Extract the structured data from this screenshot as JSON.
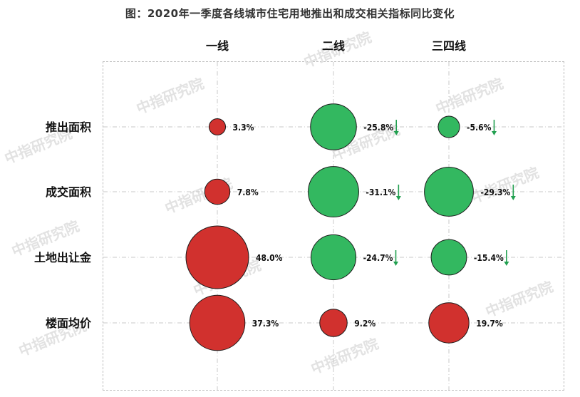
{
  "chart_data": {
    "type": "bubble-matrix",
    "title": "图：2020年一季度各线城市住宅用地推出和成交相关指标同比变化",
    "columns": [
      "一线",
      "二线",
      "三四线"
    ],
    "rows": [
      "推出面积",
      "成交面积",
      "土地出让金",
      "楼面均价"
    ],
    "values": [
      [
        3.3,
        -25.8,
        -5.6
      ],
      [
        7.8,
        -31.1,
        -29.3
      ],
      [
        48.0,
        -24.7,
        -15.4
      ],
      [
        37.3,
        9.2,
        19.7
      ]
    ],
    "labels": [
      [
        "3.3%",
        "-25.8%",
        "-5.6%"
      ],
      [
        "7.8%",
        "-31.1%",
        "-29.3%"
      ],
      [
        "48.0%",
        "-24.7%",
        "-15.4%"
      ],
      [
        "37.3%",
        "9.2%",
        "19.7%"
      ]
    ],
    "colors": {
      "positive": "#d1312e",
      "negative": "#33b860",
      "arrow": "#22a050"
    }
  },
  "watermark": "中指研究院"
}
